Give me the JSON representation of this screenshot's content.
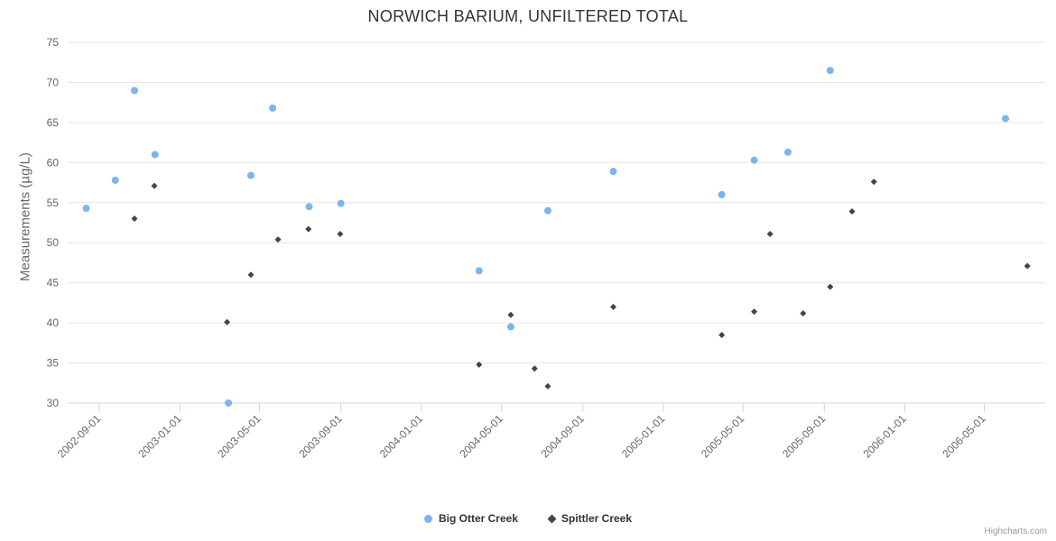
{
  "title": "NORWICH BARIUM, UNFILTERED TOTAL",
  "credit": "Highcharts.com",
  "chart_data": {
    "type": "scatter",
    "title": "NORWICH BARIUM, UNFILTERED TOTAL",
    "xlabel": "",
    "ylabel": "Measurements (µg/L)",
    "ylim": [
      30,
      75
    ],
    "y_ticks": [
      30,
      35,
      40,
      45,
      50,
      55,
      60,
      65,
      70,
      75
    ],
    "x_ticks": [
      "2002-09-01",
      "2003-01-01",
      "2003-05-01",
      "2003-09-01",
      "2004-01-01",
      "2004-05-01",
      "2004-09-01",
      "2005-01-01",
      "2005-05-01",
      "2005-09-01",
      "2006-01-01",
      "2006-05-01"
    ],
    "x_range": [
      "2002-07-15",
      "2006-08-01"
    ],
    "grid": true,
    "legend_position": "bottom",
    "series": [
      {
        "name": "Big Otter Creek",
        "color": "#7cb5ec",
        "marker": "circle",
        "points": [
          [
            "2002-08-12",
            54.3
          ],
          [
            "2002-09-25",
            57.8
          ],
          [
            "2002-10-24",
            69.0
          ],
          [
            "2002-11-24",
            61.0
          ],
          [
            "2003-03-15",
            30.0
          ],
          [
            "2003-04-18",
            58.4
          ],
          [
            "2003-05-21",
            66.8
          ],
          [
            "2003-07-15",
            54.5
          ],
          [
            "2003-09-01",
            54.9
          ],
          [
            "2004-03-28",
            46.5
          ],
          [
            "2004-05-15",
            39.5
          ],
          [
            "2004-07-10",
            54.0
          ],
          [
            "2004-10-17",
            58.9
          ],
          [
            "2005-03-30",
            56.0
          ],
          [
            "2005-05-18",
            60.3
          ],
          [
            "2005-07-08",
            61.3
          ],
          [
            "2005-09-10",
            71.5
          ],
          [
            "2006-06-02",
            65.5
          ]
        ]
      },
      {
        "name": "Spittler Creek",
        "color": "#434348",
        "marker": "diamond",
        "points": [
          [
            "2002-10-24",
            53.0
          ],
          [
            "2002-11-23",
            57.1
          ],
          [
            "2003-03-13",
            40.1
          ],
          [
            "2003-04-18",
            46.0
          ],
          [
            "2003-05-29",
            50.4
          ],
          [
            "2003-07-14",
            51.7
          ],
          [
            "2003-08-31",
            51.1
          ],
          [
            "2004-03-28",
            34.8
          ],
          [
            "2004-05-15",
            41.0
          ],
          [
            "2004-06-20",
            34.3
          ],
          [
            "2004-07-10",
            32.1
          ],
          [
            "2004-10-17",
            42.0
          ],
          [
            "2005-03-30",
            38.5
          ],
          [
            "2005-05-18",
            41.4
          ],
          [
            "2005-06-11",
            51.1
          ],
          [
            "2005-07-31",
            41.2
          ],
          [
            "2005-09-10",
            44.5
          ],
          [
            "2005-10-13",
            53.9
          ],
          [
            "2005-11-15",
            57.6
          ],
          [
            "2006-07-05",
            47.1
          ]
        ]
      }
    ]
  }
}
